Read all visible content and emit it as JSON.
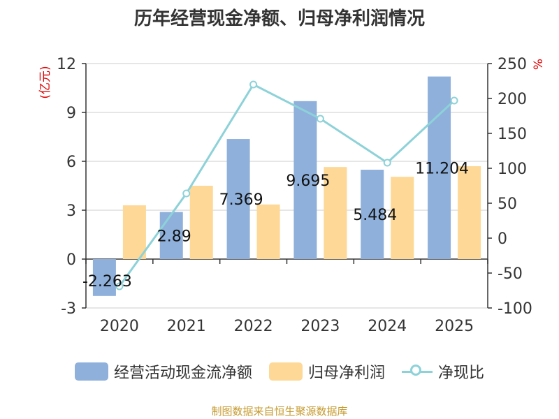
{
  "title": "历年经营现金净额、归母净利润情况",
  "source": "制图数据来自恒生聚源数据库",
  "colors": {
    "bar1": "#8eb0db",
    "bar2": "#fed896",
    "line": "#8dd2d8",
    "axis": "#333333",
    "grid": "#cccccc",
    "unit": "#e00000"
  },
  "chart_data": {
    "type": "bar",
    "categories": [
      "2020",
      "2021",
      "2022",
      "2023",
      "2024",
      "2025"
    ],
    "series": [
      {
        "name": "经营活动现金流净额",
        "type": "bar",
        "axis": "left",
        "values": [
          -2.263,
          2.89,
          7.369,
          9.695,
          5.484,
          11.204
        ],
        "labels": [
          "-2.263",
          "2.89",
          "7.369",
          "9.695",
          "5.484",
          "11.204"
        ]
      },
      {
        "name": "归母净利润",
        "type": "bar",
        "axis": "left",
        "values": [
          3.3,
          4.5,
          3.35,
          5.65,
          5.05,
          5.7
        ]
      },
      {
        "name": "净现比",
        "type": "line",
        "axis": "right",
        "values": [
          -69,
          64,
          220,
          171,
          108,
          197
        ]
      }
    ],
    "left_axis": {
      "unit": "(亿元)",
      "min": -3,
      "max": 12,
      "ticks": [
        -3,
        0,
        3,
        6,
        9,
        12
      ],
      "tick_labels": [
        "-3",
        "0",
        "3",
        "6",
        "9",
        "12"
      ]
    },
    "right_axis": {
      "unit": "%",
      "min": -100,
      "max": 250,
      "ticks": [
        -100,
        -50,
        0,
        50,
        100,
        150,
        200,
        250
      ],
      "tick_labels": [
        "-100",
        "-50",
        "0",
        "50",
        "100",
        "150",
        "200",
        "250"
      ]
    },
    "grid": true,
    "legend_position": "bottom"
  }
}
